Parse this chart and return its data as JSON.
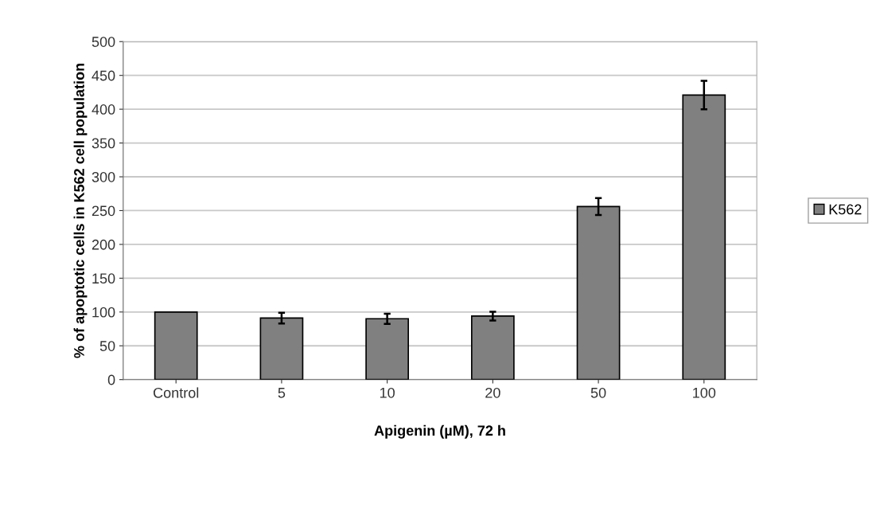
{
  "chart_data": {
    "type": "bar",
    "xlabel": "Apigenin (µM), 72 h",
    "ylabel": "% of apoptotic cells in K562 cell population",
    "categories": [
      "Control",
      "5",
      "10",
      "20",
      "50",
      "100"
    ],
    "series": [
      {
        "name": "K562",
        "color": "#808080",
        "values": [
          100,
          91,
          90,
          94,
          256,
          421
        ],
        "errors": [
          null,
          8,
          7.5,
          6.5,
          12.5,
          21
        ]
      }
    ],
    "ylim": [
      0,
      500
    ],
    "yticks": [
      0,
      50,
      100,
      150,
      200,
      250,
      300,
      350,
      400,
      450,
      500
    ],
    "grid": "y",
    "legend": "right"
  }
}
